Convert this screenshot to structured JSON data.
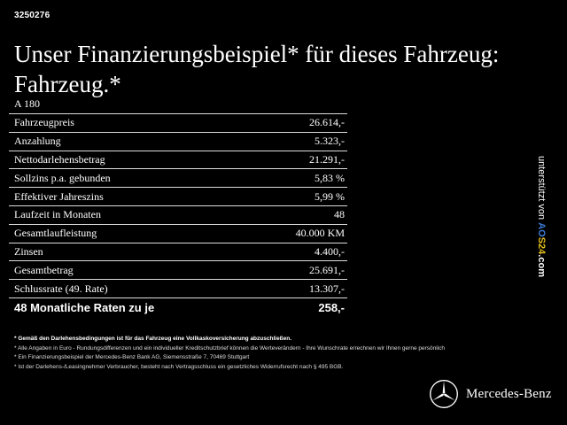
{
  "offer_id": "3250276",
  "headline": {
    "line1": "Unser Finanzierungsbeispiel* für dieses Fahrzeug:",
    "line2": "Fahrzeug.*"
  },
  "model": "A 180",
  "table": {
    "rows": [
      {
        "label": "Fahrzeugpreis",
        "value": "26.614,-"
      },
      {
        "label": "Anzahlung",
        "value": "5.323,-"
      },
      {
        "label": "Nettodarlehensbetrag",
        "value": "21.291,-"
      },
      {
        "label": "Sollzins p.a. gebunden",
        "value": "5,83 %"
      },
      {
        "label": "Effektiver Jahreszins",
        "value": "5,99 %"
      },
      {
        "label": "Laufzeit in Monaten",
        "value": "48"
      },
      {
        "label": "Gesamtlaufleistung",
        "value": "40.000 KM"
      },
      {
        "label": "Zinsen",
        "value": "4.400,-"
      },
      {
        "label": "Gesamtbetrag",
        "value": "25.691,-"
      },
      {
        "label": "Schlussrate (49. Rate)",
        "value": "13.307,-"
      }
    ],
    "total": {
      "label": "48 Monatliche Raten zu je",
      "value": "258,-"
    }
  },
  "side": {
    "text": "unterstützt von",
    "brand_part1": "AO",
    "brand_part2": "S24",
    "brand_part3": ".com"
  },
  "notes": [
    "* Gemäß den Darlehensbedingungen ist für das Fahrzeug eine Vollkaskoversicherung abzuschließen.",
    "* Alle Angaben in Euro - Rundungsdifferenzen und ein individueller Kreditschutzbrief können die Werteverändern - Ihre Wunschrate errechnen wir Ihnen gerne persönlich",
    "* Ein Finanzierungsbeispiel der Mercedes-Benz Bank AG, Siemensstraße 7, 70469 Stuttgart",
    "* Ist der Darlehens-/Leasingnehmer Verbraucher, besteht nach Vertragsschluss ein gesetzliches Widerrufsrecht nach § 495 BGB."
  ],
  "brand": {
    "name": "Mercedes-Benz",
    "logo_icon": "mercedes-star-icon"
  },
  "colors": {
    "background": "#000000",
    "text": "#ffffff",
    "accent_blue": "#3b7bd4",
    "accent_yellow": "#e8c21c"
  }
}
